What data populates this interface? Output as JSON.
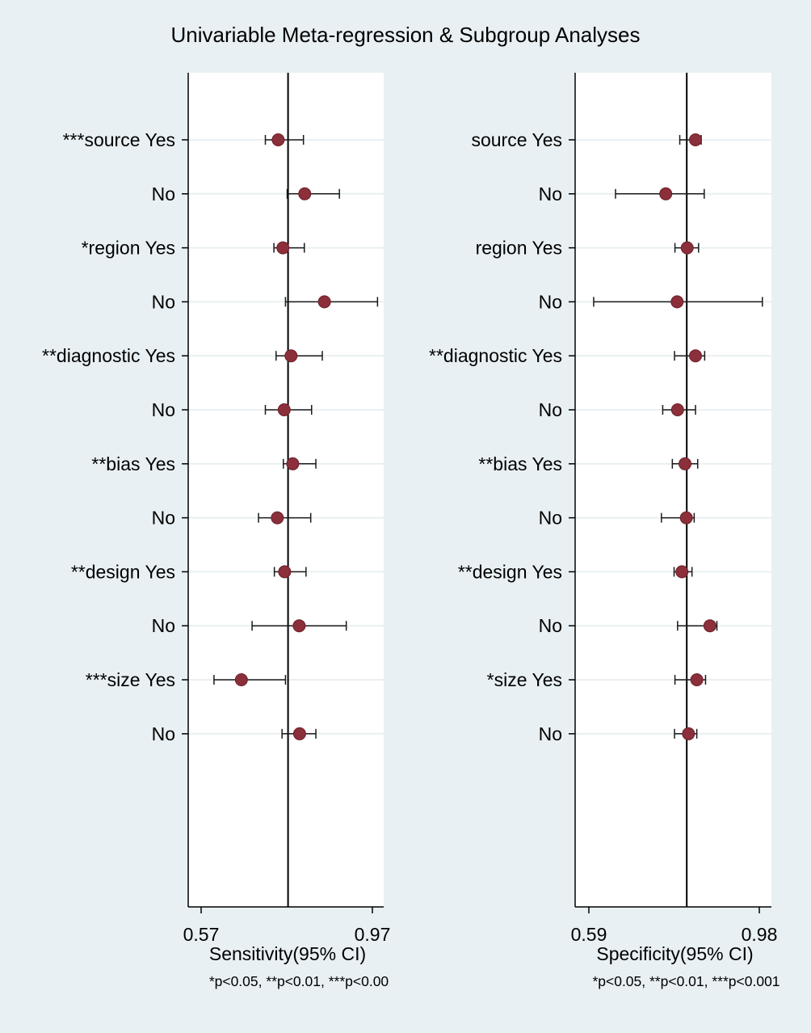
{
  "title": "Univariable Meta-regression & Subgroup Analyses",
  "chart_data": [
    {
      "type": "forest",
      "xlabel": "Sensitivity(95% CI)",
      "footnote": "*p<0.05, **p<0.01, ***p<0.00",
      "xlim": [
        0.57,
        0.97
      ],
      "xticks": [
        "0.57",
        "0.97"
      ],
      "reference_line": 0.773,
      "rows": [
        {
          "label": "***source Yes",
          "est": 0.75,
          "lo": 0.72,
          "hi": 0.809
        },
        {
          "label": "No",
          "est": 0.812,
          "lo": 0.771,
          "hi": 0.893
        },
        {
          "label": "*region Yes",
          "est": 0.761,
          "lo": 0.74,
          "hi": 0.811
        },
        {
          "label": "No",
          "est": 0.858,
          "lo": 0.767,
          "hi": 0.982
        },
        {
          "label": "**diagnostic Yes",
          "est": 0.78,
          "lo": 0.745,
          "hi": 0.853
        },
        {
          "label": "No",
          "est": 0.764,
          "lo": 0.72,
          "hi": 0.828
        },
        {
          "label": "**bias Yes",
          "est": 0.784,
          "lo": 0.762,
          "hi": 0.838
        },
        {
          "label": "No",
          "est": 0.748,
          "lo": 0.704,
          "hi": 0.826
        },
        {
          "label": "**design Yes",
          "est": 0.765,
          "lo": 0.741,
          "hi": 0.815
        },
        {
          "label": "No",
          "est": 0.799,
          "lo": 0.689,
          "hi": 0.909
        },
        {
          "label": "***size Yes",
          "est": 0.664,
          "lo": 0.6,
          "hi": 0.767
        },
        {
          "label": "No",
          "est": 0.8,
          "lo": 0.759,
          "hi": 0.838
        }
      ]
    },
    {
      "type": "forest",
      "xlabel": "Specificity(95% CI)",
      "footnote": "*p<0.05, **p<0.01, ***p<0.001",
      "xlim": [
        0.59,
        0.98
      ],
      "xticks": [
        "0.59",
        "0.98"
      ],
      "reference_line": 0.814,
      "rows": [
        {
          "label": "source Yes",
          "est": 0.834,
          "lo": 0.798,
          "hi": 0.847
        },
        {
          "label": "No",
          "est": 0.766,
          "lo": 0.651,
          "hi": 0.854
        },
        {
          "label": "region Yes",
          "est": 0.815,
          "lo": 0.787,
          "hi": 0.841
        },
        {
          "label": "No",
          "est": 0.792,
          "lo": 0.601,
          "hi": 0.987
        },
        {
          "label": "**diagnostic Yes",
          "est": 0.834,
          "lo": 0.786,
          "hi": 0.855
        },
        {
          "label": "No",
          "est": 0.793,
          "lo": 0.759,
          "hi": 0.834
        },
        {
          "label": "**bias Yes",
          "est": 0.81,
          "lo": 0.781,
          "hi": 0.839
        },
        {
          "label": "No",
          "est": 0.813,
          "lo": 0.756,
          "hi": 0.831
        },
        {
          "label": "**design Yes",
          "est": 0.803,
          "lo": 0.785,
          "hi": 0.826
        },
        {
          "label": "No",
          "est": 0.867,
          "lo": 0.793,
          "hi": 0.883
        },
        {
          "label": "*size Yes",
          "est": 0.837,
          "lo": 0.787,
          "hi": 0.857
        },
        {
          "label": "No",
          "est": 0.818,
          "lo": 0.786,
          "hi": 0.837
        }
      ]
    }
  ]
}
